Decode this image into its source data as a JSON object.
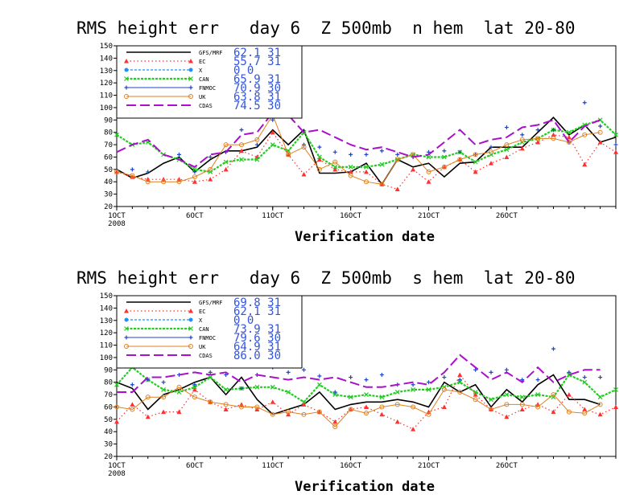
{
  "chart_data": [
    {
      "type": "line",
      "title": "RMS height err   day 6  Z 500mb  n hem  lat 20-80",
      "xlabel": "Verification date",
      "ylabel": "",
      "ylim": [
        20,
        150
      ],
      "yticks": [
        20,
        30,
        40,
        50,
        60,
        70,
        80,
        90,
        100,
        110,
        120,
        130,
        140,
        150
      ],
      "xticks": [
        {
          "day": 1,
          "label": "1OCT"
        },
        {
          "day": 6,
          "label": "6OCT"
        },
        {
          "day": 11,
          "label": "11OCT"
        },
        {
          "day": 16,
          "label": "16OCT"
        },
        {
          "day": 21,
          "label": "21OCT"
        },
        {
          "day": 26,
          "label": "26OCT"
        }
      ],
      "year_label": "2008",
      "xlim": [
        1,
        31
      ],
      "series": [
        {
          "name": "GFS/MRF",
          "stat_mean": "62.1",
          "stat_n": "31",
          "color": "#000000",
          "values": [
            50,
            43,
            47,
            55,
            60,
            48,
            58,
            65,
            65,
            68,
            82,
            70,
            82,
            47,
            47,
            48,
            55,
            38,
            58,
            52,
            55,
            44,
            55,
            56,
            68,
            68,
            68,
            80,
            92,
            78,
            86,
            72,
            76
          ]
        },
        {
          "name": "EC",
          "stat_mean": "55.7",
          "stat_n": "31",
          "color": "#ff3030",
          "values": [
            48,
            44,
            42,
            42,
            42,
            40,
            42,
            50,
            65,
            60,
            80,
            62,
            46,
            58,
            50,
            48,
            48,
            38,
            34,
            50,
            40,
            52,
            58,
            48,
            55,
            60,
            67,
            72,
            78,
            76,
            54,
            72,
            64
          ]
        },
        {
          "name": "X",
          "stat_mean": "0",
          "stat_n": "0",
          "color": "#1e90ff",
          "values": []
        },
        {
          "name": "CAN",
          "stat_mean": "65.9",
          "stat_n": "31",
          "color": "#22cc22",
          "values": [
            78,
            70,
            72,
            62,
            58,
            50,
            48,
            56,
            58,
            58,
            70,
            65,
            80,
            60,
            52,
            52,
            52,
            54,
            58,
            62,
            60,
            60,
            64,
            56,
            62,
            66,
            72,
            75,
            82,
            80,
            86,
            90,
            78
          ]
        },
        {
          "name": "FNMOC",
          "stat_mean": "70.9",
          "stat_n": "30",
          "color": "#2244cc",
          "values": [
            null,
            50,
            48,
            null,
            62,
            48,
            60,
            64,
            82,
            70,
            90,
            98,
            70,
            68,
            64,
            62,
            62,
            65,
            62,
            60,
            64,
            65,
            64,
            62,
            68,
            84,
            78,
            82,
            82,
            72,
            104,
            85,
            70
          ]
        },
        {
          "name": "UK",
          "stat_mean": "63.8",
          "stat_n": "31",
          "color": "#e08020",
          "values": [
            48,
            45,
            40,
            40,
            40,
            44,
            50,
            70,
            70,
            74,
            94,
            62,
            68,
            50,
            56,
            45,
            40,
            38,
            58,
            62,
            48,
            52,
            58,
            62,
            64,
            70,
            74,
            75,
            75,
            72,
            78,
            80,
            null
          ]
        },
        {
          "name": "CDAS",
          "stat_mean": "74.5",
          "stat_n": "30",
          "color": "#aa10cc",
          "values": [
            64,
            70,
            74,
            62,
            58,
            52,
            62,
            64,
            78,
            80,
            96,
            94,
            80,
            82,
            76,
            70,
            66,
            68,
            64,
            60,
            62,
            72,
            82,
            70,
            74,
            76,
            84,
            86,
            90,
            72,
            85,
            90,
            null
          ]
        }
      ]
    },
    {
      "type": "line",
      "title": "RMS height err   day 6  Z 500mb  s hem  lat 20-80",
      "xlabel": "Verification date",
      "ylabel": "",
      "ylim": [
        20,
        150
      ],
      "yticks": [
        20,
        30,
        40,
        50,
        60,
        70,
        80,
        90,
        100,
        110,
        120,
        130,
        140,
        150
      ],
      "xticks": [
        {
          "day": 1,
          "label": "1OCT"
        },
        {
          "day": 6,
          "label": "6OCT"
        },
        {
          "day": 11,
          "label": "11OCT"
        },
        {
          "day": 16,
          "label": "16OCT"
        },
        {
          "day": 21,
          "label": "21OCT"
        },
        {
          "day": 26,
          "label": "26OCT"
        }
      ],
      "year_label": "2008",
      "xlim": [
        1,
        31
      ],
      "series": [
        {
          "name": "GFS/MRF",
          "stat_mean": "69.8",
          "stat_n": "31",
          "color": "#000000",
          "values": [
            80,
            75,
            58,
            70,
            74,
            80,
            84,
            70,
            84,
            66,
            54,
            58,
            62,
            72,
            58,
            62,
            64,
            64,
            66,
            64,
            60,
            80,
            72,
            78,
            60,
            74,
            64,
            78,
            86,
            66,
            66,
            62,
            null
          ]
        },
        {
          "name": "EC",
          "stat_mean": "62.1",
          "stat_n": "31",
          "color": "#ff3030",
          "values": [
            48,
            62,
            52,
            56,
            56,
            74,
            64,
            58,
            62,
            58,
            64,
            54,
            62,
            56,
            48,
            58,
            60,
            54,
            48,
            42,
            56,
            60,
            86,
            70,
            58,
            52,
            58,
            62,
            56,
            70,
            58,
            54,
            60
          ]
        },
        {
          "name": "X",
          "stat_mean": "0",
          "stat_n": "0",
          "color": "#1e90ff",
          "values": []
        },
        {
          "name": "CAN",
          "stat_mean": "73.9",
          "stat_n": "31",
          "color": "#22cc22",
          "values": [
            78,
            92,
            82,
            74,
            72,
            76,
            84,
            74,
            75,
            76,
            76,
            72,
            64,
            78,
            70,
            68,
            70,
            68,
            72,
            74,
            74,
            76,
            80,
            72,
            66,
            70,
            68,
            70,
            68,
            86,
            80,
            68,
            74
          ]
        },
        {
          "name": "FNMOC",
          "stat_mean": "79.6",
          "stat_n": "30",
          "color": "#2244cc",
          "values": [
            null,
            78,
            82,
            80,
            86,
            78,
            88,
            86,
            75,
            86,
            92,
            88,
            90,
            85,
            72,
            84,
            82,
            86,
            78,
            78,
            80,
            84,
            82,
            90,
            88,
            90,
            82,
            82,
            107,
            88,
            84,
            84,
            null
          ]
        },
        {
          "name": "UK",
          "stat_mean": "64.9",
          "stat_n": "31",
          "color": "#e08020",
          "values": [
            60,
            58,
            68,
            68,
            76,
            68,
            64,
            62,
            60,
            60,
            54,
            56,
            54,
            56,
            44,
            58,
            55,
            60,
            62,
            60,
            54,
            74,
            72,
            66,
            58,
            62,
            62,
            60,
            70,
            56,
            55,
            62,
            null
          ]
        },
        {
          "name": "CDAS",
          "stat_mean": "86.0",
          "stat_n": "30",
          "color": "#aa10cc",
          "values": [
            72,
            72,
            84,
            84,
            86,
            88,
            86,
            88,
            80,
            86,
            84,
            82,
            84,
            82,
            84,
            80,
            76,
            76,
            78,
            80,
            78,
            88,
            102,
            92,
            82,
            88,
            80,
            92,
            80,
            86,
            90,
            90,
            null
          ]
        }
      ]
    }
  ]
}
